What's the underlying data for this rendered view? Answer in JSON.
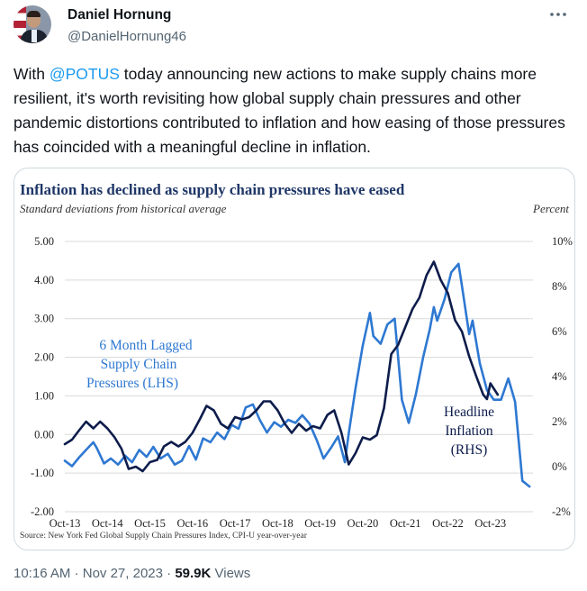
{
  "author": {
    "name": "Daniel Hornung",
    "handle": "@DanielHornung46"
  },
  "menu_icon": "more-dots-icon",
  "tweet": {
    "pre": "With ",
    "mention": "@POTUS",
    "post": " today announcing new actions to make supply chains more resilient, it's worth revisiting how global supply chain pressures and other pandemic distortions contributed to inflation and how easing of those pressures has coincided with a meaningful decline in inflation."
  },
  "meta": {
    "time": "10:16 AM",
    "sep": " · ",
    "date": "Nov 27, 2023",
    "views_count": "59.9K",
    "views_label": " Views"
  },
  "chart_data": {
    "type": "line",
    "title": "Inflation has declined as supply chain pressures have eased",
    "subtitle": "Standard deviations from historical average",
    "y2_label": "Percent",
    "source": "Source: New York Fed Global Supply Chain Pressures Index, CPI-U year-over-year",
    "x_ticks": [
      "Oct-13",
      "Oct-14",
      "Oct-15",
      "Oct-16",
      "Oct-17",
      "Oct-18",
      "Oct-19",
      "Oct-20",
      "Oct-21",
      "Oct-22",
      "Oct-23"
    ],
    "y_ticks": [
      "5.00",
      "4.00",
      "3.00",
      "2.00",
      "1.00",
      "0.00",
      "-1.00",
      "-2.00"
    ],
    "y2_ticks": [
      "10%",
      "8%",
      "6%",
      "4%",
      "2%",
      "0%",
      "-2%"
    ],
    "ylim": [
      -2,
      5
    ],
    "y2lim": [
      -2,
      10
    ],
    "grid": true,
    "annotations": {
      "lhs": [
        "6 Month Lagged",
        "Supply Chain",
        "Pressures (LHS)"
      ],
      "rhs": [
        "Headline",
        "Inflation",
        "(RHS)"
      ]
    },
    "series": [
      {
        "name": "6 Month Lagged Supply Chain Pressures (LHS)",
        "axis": "left",
        "color": "#2e78d2",
        "points": [
          [
            2013.75,
            -0.68
          ],
          [
            2013.92,
            -0.82
          ],
          [
            2014.08,
            -0.6
          ],
          [
            2014.25,
            -0.4
          ],
          [
            2014.42,
            -0.2
          ],
          [
            2014.5,
            -0.35
          ],
          [
            2014.67,
            -0.75
          ],
          [
            2014.83,
            -0.62
          ],
          [
            2015.0,
            -0.78
          ],
          [
            2015.17,
            -0.55
          ],
          [
            2015.33,
            -0.72
          ],
          [
            2015.5,
            -0.4
          ],
          [
            2015.67,
            -0.58
          ],
          [
            2015.83,
            -0.32
          ],
          [
            2016.0,
            -0.62
          ],
          [
            2016.17,
            -0.5
          ],
          [
            2016.33,
            -0.78
          ],
          [
            2016.5,
            -0.68
          ],
          [
            2016.67,
            -0.3
          ],
          [
            2016.83,
            -0.65
          ],
          [
            2017.0,
            -0.1
          ],
          [
            2017.17,
            -0.2
          ],
          [
            2017.33,
            0.05
          ],
          [
            2017.5,
            -0.12
          ],
          [
            2017.67,
            0.25
          ],
          [
            2017.83,
            0.15
          ],
          [
            2018.0,
            0.7
          ],
          [
            2018.17,
            0.78
          ],
          [
            2018.33,
            0.38
          ],
          [
            2018.5,
            0.05
          ],
          [
            2018.67,
            0.32
          ],
          [
            2018.83,
            0.2
          ],
          [
            2019.0,
            0.38
          ],
          [
            2019.17,
            0.3
          ],
          [
            2019.33,
            0.5
          ],
          [
            2019.5,
            0.28
          ],
          [
            2019.67,
            -0.15
          ],
          [
            2019.83,
            -0.62
          ],
          [
            2020.0,
            -0.35
          ],
          [
            2020.17,
            -0.05
          ],
          [
            2020.33,
            -0.72
          ],
          [
            2020.42,
            0.02
          ],
          [
            2020.58,
            1.2
          ],
          [
            2020.75,
            2.3
          ],
          [
            2020.92,
            3.15
          ],
          [
            2021.0,
            2.55
          ],
          [
            2021.17,
            2.35
          ],
          [
            2021.33,
            2.85
          ],
          [
            2021.5,
            3.0
          ],
          [
            2021.67,
            0.9
          ],
          [
            2021.83,
            0.3
          ],
          [
            2022.0,
            1.05
          ],
          [
            2022.17,
            2.0
          ],
          [
            2022.33,
            2.75
          ],
          [
            2022.42,
            3.3
          ],
          [
            2022.5,
            2.95
          ],
          [
            2022.67,
            3.5
          ],
          [
            2022.83,
            4.2
          ],
          [
            2023.0,
            4.42
          ],
          [
            2023.08,
            3.85
          ],
          [
            2023.25,
            2.6
          ],
          [
            2023.33,
            2.95
          ],
          [
            2023.5,
            1.85
          ],
          [
            2023.67,
            1.15
          ],
          [
            2023.83,
            0.9
          ],
          [
            2024.0,
            0.9
          ],
          [
            2024.17,
            1.45
          ],
          [
            2024.33,
            0.85
          ],
          [
            2024.5,
            -1.2
          ],
          [
            2024.67,
            -1.35
          ]
        ]
      },
      {
        "name": "Headline Inflation (RHS)",
        "axis": "right",
        "color": "#0d1c4b",
        "points": [
          [
            2013.75,
            1.0
          ],
          [
            2013.92,
            1.2
          ],
          [
            2014.08,
            1.6
          ],
          [
            2014.25,
            2.0
          ],
          [
            2014.42,
            1.7
          ],
          [
            2014.58,
            2.0
          ],
          [
            2014.75,
            1.7
          ],
          [
            2014.92,
            1.3
          ],
          [
            2015.08,
            0.8
          ],
          [
            2015.25,
            -0.1
          ],
          [
            2015.42,
            0.0
          ],
          [
            2015.58,
            -0.2
          ],
          [
            2015.75,
            0.2
          ],
          [
            2015.92,
            0.3
          ],
          [
            2016.08,
            0.9
          ],
          [
            2016.25,
            1.1
          ],
          [
            2016.42,
            0.9
          ],
          [
            2016.58,
            1.1
          ],
          [
            2016.75,
            1.5
          ],
          [
            2016.92,
            2.1
          ],
          [
            2017.08,
            2.7
          ],
          [
            2017.25,
            2.5
          ],
          [
            2017.42,
            1.9
          ],
          [
            2017.58,
            1.7
          ],
          [
            2017.75,
            2.2
          ],
          [
            2017.92,
            2.1
          ],
          [
            2018.08,
            2.2
          ],
          [
            2018.25,
            2.5
          ],
          [
            2018.42,
            2.9
          ],
          [
            2018.58,
            2.9
          ],
          [
            2018.75,
            2.5
          ],
          [
            2018.92,
            1.9
          ],
          [
            2019.08,
            1.5
          ],
          [
            2019.25,
            1.9
          ],
          [
            2019.42,
            1.6
          ],
          [
            2019.58,
            1.8
          ],
          [
            2019.75,
            1.7
          ],
          [
            2019.92,
            2.3
          ],
          [
            2020.08,
            2.5
          ],
          [
            2020.25,
            1.5
          ],
          [
            2020.42,
            0.1
          ],
          [
            2020.58,
            0.6
          ],
          [
            2020.75,
            1.3
          ],
          [
            2020.92,
            1.2
          ],
          [
            2021.08,
            1.4
          ],
          [
            2021.25,
            2.6
          ],
          [
            2021.42,
            5.0
          ],
          [
            2021.58,
            5.4
          ],
          [
            2021.75,
            6.2
          ],
          [
            2021.92,
            7.0
          ],
          [
            2022.08,
            7.5
          ],
          [
            2022.25,
            8.5
          ],
          [
            2022.42,
            9.1
          ],
          [
            2022.58,
            8.3
          ],
          [
            2022.75,
            7.7
          ],
          [
            2022.92,
            6.5
          ],
          [
            2023.08,
            6.0
          ],
          [
            2023.25,
            4.9
          ],
          [
            2023.42,
            4.0
          ],
          [
            2023.58,
            3.2
          ],
          [
            2023.67,
            3.0
          ],
          [
            2023.75,
            3.7
          ],
          [
            2023.92,
            3.2
          ]
        ]
      }
    ]
  }
}
